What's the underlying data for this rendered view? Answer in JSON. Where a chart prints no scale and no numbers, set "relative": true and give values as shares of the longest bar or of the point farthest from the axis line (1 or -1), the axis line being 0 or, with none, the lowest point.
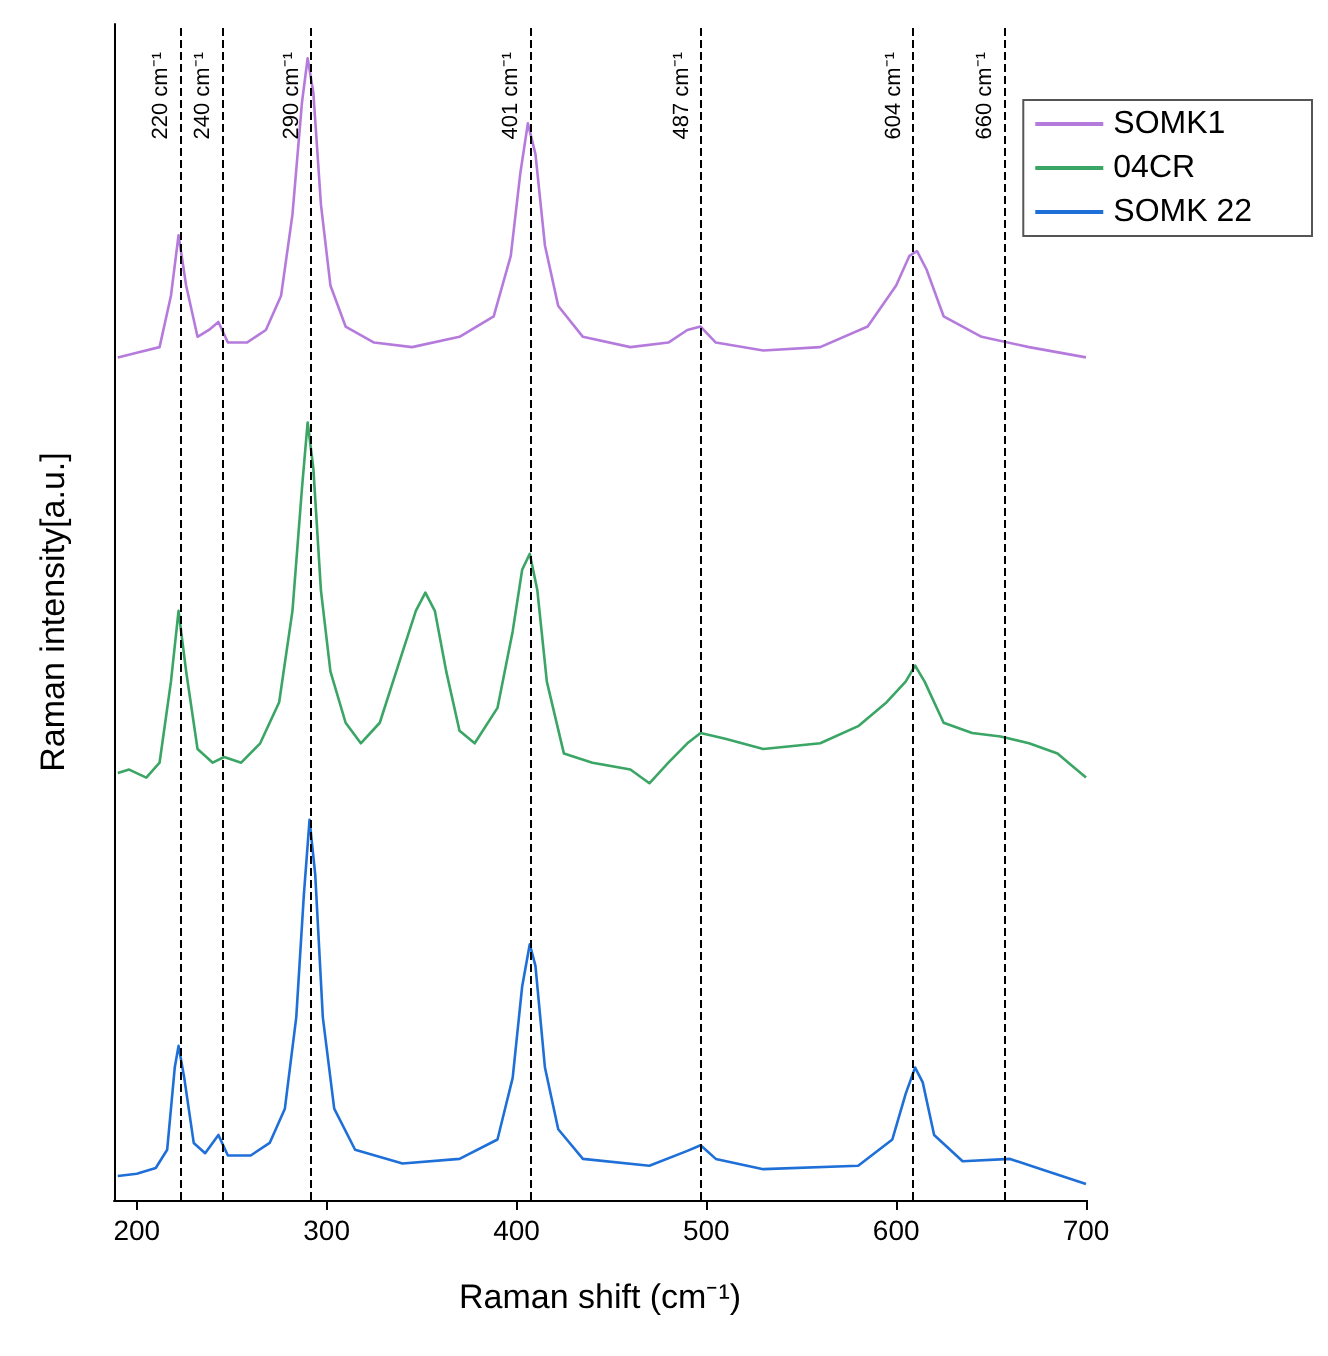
{
  "chart_data": {
    "type": "line",
    "relative": true,
    "xlabel": "Raman shift (cm⁻¹)",
    "ylabel": "Raman intensity[a.u.]",
    "xlim": [
      188,
      700
    ],
    "xticks": [
      200,
      300,
      400,
      500,
      600,
      700
    ],
    "grid": false,
    "legend": "top right",
    "marker": "none",
    "line_style": "solid",
    "ref_lines": [
      {
        "axis": "x",
        "value": 223,
        "label": "220 cm⁻¹",
        "line_style": "dashed",
        "color": "#000000"
      },
      {
        "axis": "x",
        "value": 245,
        "label": "240 cm⁻¹",
        "line_style": "dashed",
        "color": "#000000"
      },
      {
        "axis": "x",
        "value": 292,
        "label": "290 cm⁻¹",
        "line_style": "dashed",
        "color": "#000000"
      },
      {
        "axis": "x",
        "value": 407,
        "label": "401 cm⁻¹",
        "line_style": "dashed",
        "color": "#000000"
      },
      {
        "axis": "x",
        "value": 497,
        "label": "487 cm⁻¹",
        "line_style": "dashed",
        "color": "#000000"
      },
      {
        "axis": "x",
        "value": 609,
        "label": "604 cm⁻¹",
        "line_style": "dashed",
        "color": "#000000"
      },
      {
        "axis": "x",
        "value": 657,
        "label": "660 cm⁻¹",
        "line_style": "dashed",
        "color": "#000000"
      }
    ],
    "series": [
      {
        "name": "SOMK1",
        "color": "#b57bdc",
        "x": [
          190,
          200,
          212,
          218,
          222,
          226,
          232,
          238,
          243,
          248,
          258,
          268,
          276,
          282,
          287,
          290,
          293,
          297,
          302,
          310,
          325,
          345,
          370,
          388,
          397,
          402,
          406,
          410,
          415,
          422,
          435,
          460,
          480,
          490,
          497,
          505,
          530,
          560,
          585,
          600,
          607,
          611,
          616,
          625,
          645,
          670,
          700
        ],
        "values": [
          0.738,
          0.742,
          0.747,
          0.792,
          0.845,
          0.801,
          0.756,
          0.762,
          0.769,
          0.751,
          0.751,
          0.762,
          0.792,
          0.863,
          0.961,
          1.0,
          0.97,
          0.872,
          0.801,
          0.765,
          0.751,
          0.747,
          0.756,
          0.774,
          0.827,
          0.899,
          0.943,
          0.916,
          0.836,
          0.783,
          0.756,
          0.747,
          0.751,
          0.762,
          0.765,
          0.751,
          0.744,
          0.747,
          0.765,
          0.801,
          0.827,
          0.831,
          0.815,
          0.774,
          0.756,
          0.747,
          0.738
        ]
      },
      {
        "name": "04CR",
        "color": "#3aa564",
        "x": [
          190,
          196,
          205,
          212,
          218,
          222,
          226,
          232,
          240,
          246,
          255,
          265,
          275,
          282,
          287,
          290,
          293,
          297,
          302,
          310,
          318,
          328,
          340,
          347,
          352,
          357,
          363,
          370,
          378,
          390,
          398,
          403,
          407,
          411,
          416,
          425,
          440,
          460,
          470,
          480,
          490,
          497,
          510,
          530,
          560,
          580,
          595,
          605,
          610,
          615,
          625,
          640,
          655,
          670,
          685,
          700
        ],
        "values": [
          0.374,
          0.377,
          0.37,
          0.383,
          0.454,
          0.516,
          0.463,
          0.395,
          0.383,
          0.388,
          0.383,
          0.4,
          0.436,
          0.516,
          0.623,
          0.681,
          0.641,
          0.534,
          0.463,
          0.418,
          0.4,
          0.418,
          0.48,
          0.516,
          0.532,
          0.516,
          0.463,
          0.411,
          0.4,
          0.431,
          0.498,
          0.552,
          0.566,
          0.534,
          0.454,
          0.391,
          0.383,
          0.377,
          0.365,
          0.383,
          0.4,
          0.409,
          0.404,
          0.395,
          0.4,
          0.415,
          0.436,
          0.454,
          0.468,
          0.454,
          0.418,
          0.409,
          0.406,
          0.4,
          0.391,
          0.37
        ]
      },
      {
        "name": "SOMK 22",
        "color": "#1f6fd8",
        "x": [
          190,
          200,
          210,
          216,
          220,
          222,
          225,
          230,
          236,
          243,
          248,
          260,
          270,
          278,
          284,
          288,
          291,
          294,
          298,
          304,
          315,
          340,
          370,
          390,
          398,
          403,
          407,
          410,
          415,
          422,
          435,
          470,
          490,
          497,
          505,
          530,
          580,
          598,
          605,
          610,
          614,
          620,
          635,
          660,
          680,
          700
        ],
        "values": [
          0.021,
          0.023,
          0.028,
          0.044,
          0.116,
          0.135,
          0.107,
          0.05,
          0.041,
          0.057,
          0.039,
          0.039,
          0.05,
          0.08,
          0.16,
          0.267,
          0.333,
          0.285,
          0.16,
          0.08,
          0.044,
          0.032,
          0.036,
          0.053,
          0.107,
          0.187,
          0.224,
          0.205,
          0.116,
          0.062,
          0.036,
          0.03,
          0.043,
          0.048,
          0.036,
          0.027,
          0.03,
          0.053,
          0.093,
          0.116,
          0.103,
          0.057,
          0.034,
          0.036,
          0.025,
          0.014
        ]
      }
    ]
  }
}
